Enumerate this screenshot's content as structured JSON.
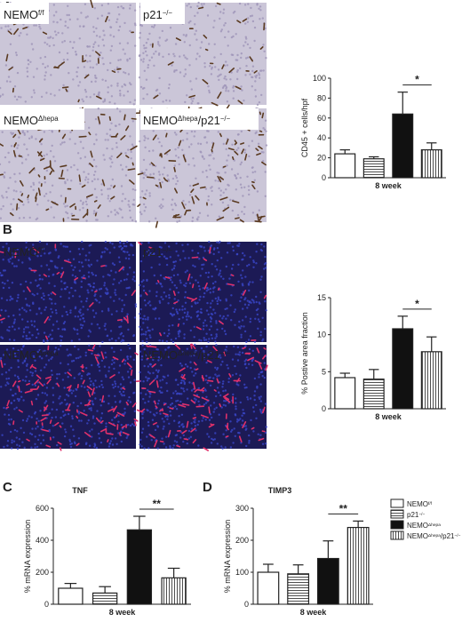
{
  "panel_labels": [
    "A",
    "B",
    "C",
    "D"
  ],
  "groups": [
    [
      {
        "text": "NEMO"
      },
      {
        "text": "f/f",
        "sup": true
      }
    ],
    [
      {
        "text": "p21"
      },
      {
        "text": "−/−",
        "sup": true
      }
    ],
    [
      {
        "text": "NEMO"
      },
      {
        "text": "Δhepa",
        "sup": true
      }
    ],
    [
      {
        "text": "NEMO"
      },
      {
        "text": "Δhepa",
        "sup": true
      },
      {
        "text": "/p21"
      },
      {
        "text": "−/−",
        "sup": true
      }
    ]
  ],
  "group_fills": [
    "white",
    "hlines",
    "black",
    "vlines"
  ],
  "chart_data": [
    {
      "type": "bar",
      "ylabel": "CD45 + cells/hpf",
      "xlabel": "8 week",
      "values": [
        24,
        19,
        64,
        28
      ],
      "errors": [
        4,
        2,
        22,
        7
      ],
      "ylim": [
        0,
        100
      ],
      "yticks": [
        0,
        20,
        40,
        60,
        80,
        100
      ],
      "significance": {
        "label": "*",
        "between": [
          2,
          3
        ]
      }
    },
    {
      "type": "bar",
      "ylabel": "% Postive area fraction",
      "xlabel": "8 week",
      "values": [
        4.2,
        4.0,
        10.8,
        7.7
      ],
      "errors": [
        0.6,
        1.3,
        1.7,
        2.0
      ],
      "ylim": [
        0,
        15
      ],
      "yticks": [
        0,
        5,
        10,
        15
      ],
      "significance": {
        "label": "*",
        "between": [
          2,
          3
        ]
      }
    },
    {
      "type": "bar",
      "title": "TNF",
      "ylabel": "% mRNA expression",
      "xlabel": "8 week",
      "values": [
        100,
        70,
        465,
        165
      ],
      "errors": [
        30,
        40,
        85,
        60
      ],
      "ylim": [
        0,
        600
      ],
      "yticks": [
        0,
        200,
        400,
        600
      ],
      "significance": {
        "label": "**",
        "between": [
          2,
          3
        ]
      }
    },
    {
      "type": "bar",
      "title": "TIMP3",
      "ylabel": "% mRNA expression",
      "xlabel": "8 week",
      "values": [
        100,
        95,
        143,
        240
      ],
      "errors": [
        25,
        28,
        55,
        20
      ],
      "ylim": [
        0,
        300
      ],
      "yticks": [
        0,
        100,
        200,
        300
      ],
      "significance": {
        "label": "**",
        "between": [
          2,
          3
        ]
      }
    }
  ]
}
